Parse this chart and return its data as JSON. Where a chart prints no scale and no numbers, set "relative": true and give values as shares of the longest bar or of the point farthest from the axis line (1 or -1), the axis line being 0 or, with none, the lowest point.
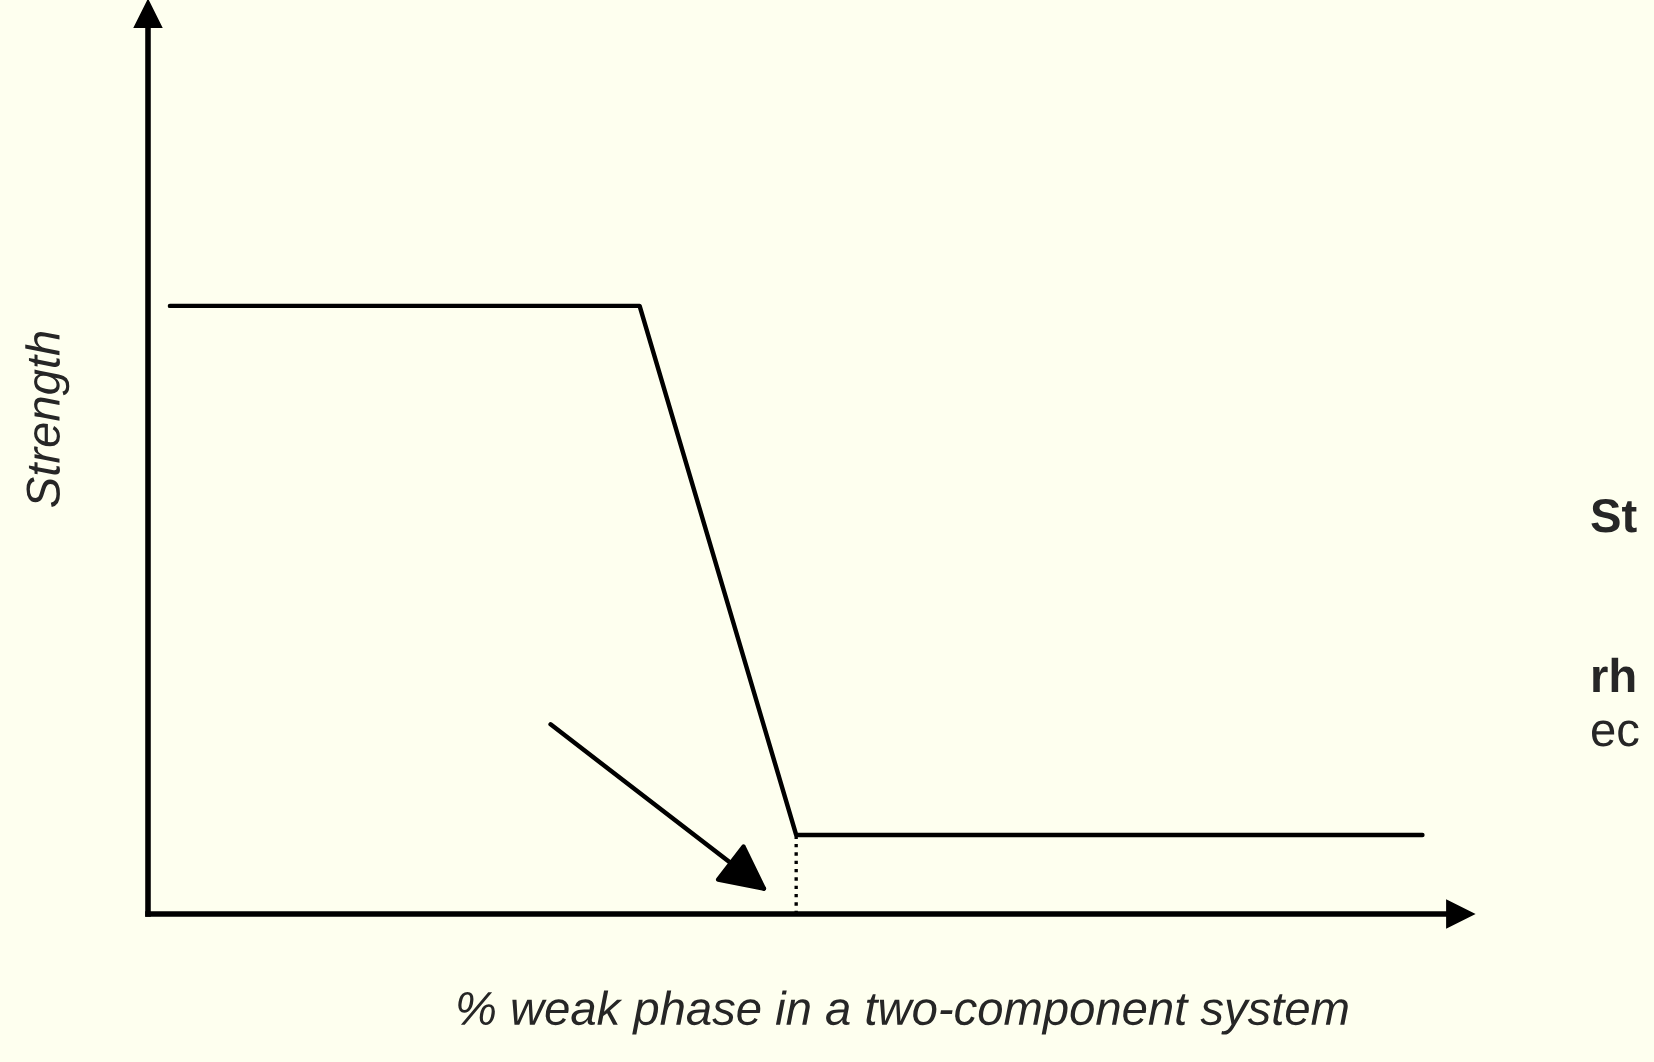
{
  "chart_data": {
    "type": "line",
    "xlabel": "% weak phase in a two-component system",
    "ylabel": "Strength",
    "annotations": [
      "St",
      "rh",
      "ec"
    ],
    "categories": [
      null,
      null,
      null,
      null,
      null,
      null,
      null,
      null,
      null
    ],
    "relative": true,
    "line_style": "solid",
    "series": [
      {
        "color": "#000000",
        "values": [
          1,
          1,
          1,
          1,
          0.13,
          0.13,
          0.13,
          0.13,
          0.13
        ]
      }
    ]
  }
}
